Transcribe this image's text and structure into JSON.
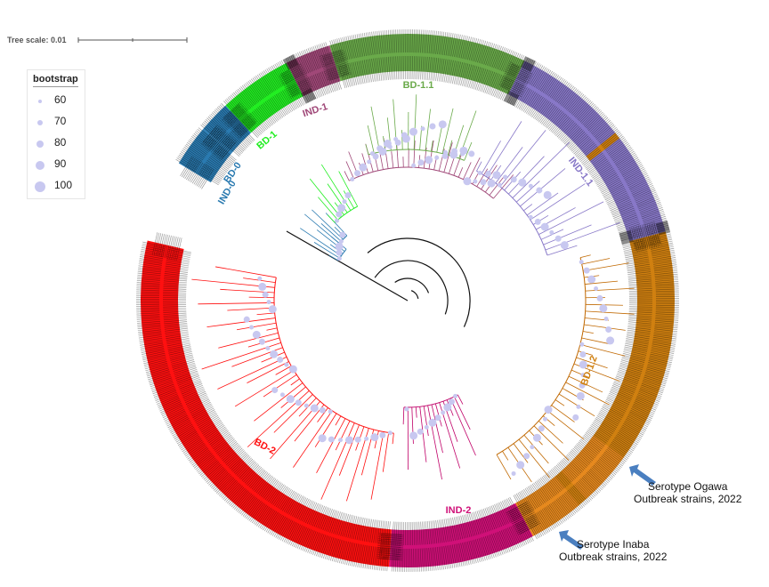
{
  "tree_scale": {
    "label": "Tree scale: 0.01"
  },
  "legend": {
    "title": "bootstrap",
    "items": [
      {
        "label": "60"
      },
      {
        "label": "70"
      },
      {
        "label": "80"
      },
      {
        "label": "90"
      },
      {
        "label": "100"
      }
    ],
    "dot_color": "#c8c8f0"
  },
  "clades": [
    {
      "name": "IND-0",
      "color": "#2a7ab0"
    },
    {
      "name": "BD-0",
      "color": "#2a7ab0"
    },
    {
      "name": "BD-1",
      "color": "#22ee22"
    },
    {
      "name": "IND-1",
      "color": "#a04878"
    },
    {
      "name": "BD-1.1",
      "color": "#6aaa4a"
    },
    {
      "name": "IND-1.1",
      "color": "#8878c8"
    },
    {
      "name": "BD-1.2",
      "color": "#d08010"
    },
    {
      "name": "IND-2",
      "color": "#d01078"
    },
    {
      "name": "BD-2",
      "color": "#ff1010"
    }
  ],
  "annotations": {
    "ogawa": {
      "line1": "Serotype Ogawa",
      "line2": "Outbreak strains, 2022"
    },
    "inaba": {
      "line1": "Serotype Inaba",
      "line2": "Outbreak strains, 2022"
    }
  },
  "arrow_color": "#4a7fc0"
}
